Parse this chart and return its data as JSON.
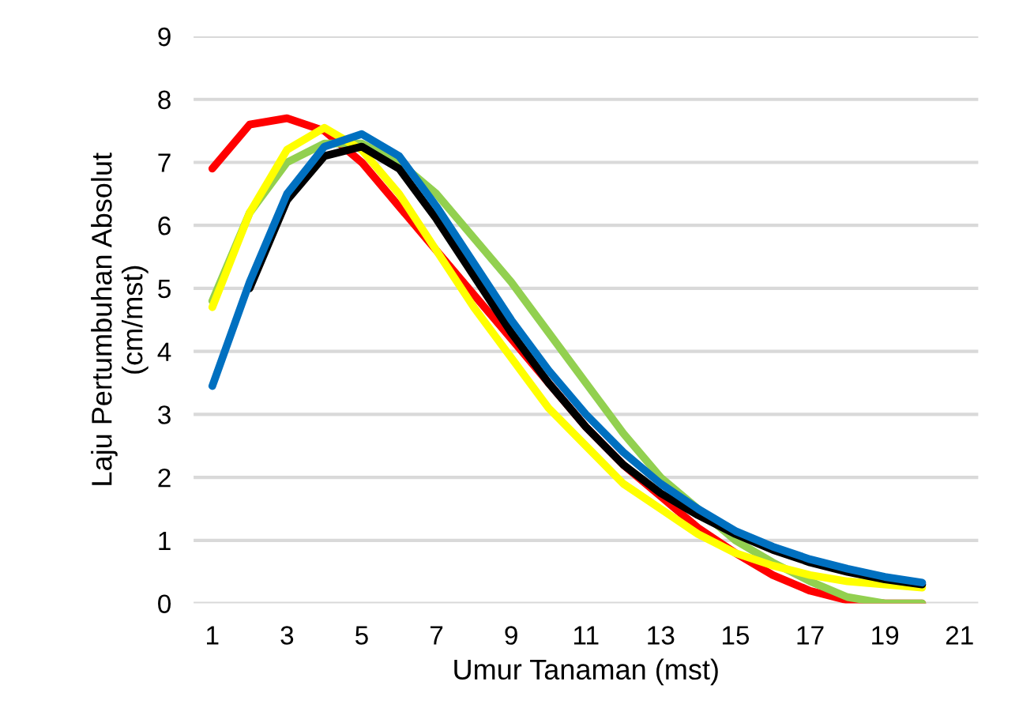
{
  "chart_data": {
    "type": "line",
    "xlabel": "Umur Tanaman (mst)",
    "ylabel": "Laju Pertumbuhan Absolut\n(cm/mst)",
    "x": [
      1,
      2,
      3,
      4,
      5,
      6,
      7,
      8,
      9,
      10,
      11,
      12,
      13,
      14,
      15,
      16,
      17,
      18,
      19,
      20
    ],
    "xlim": [
      0.5,
      21.5
    ],
    "xticks": [
      1,
      3,
      5,
      7,
      9,
      11,
      13,
      15,
      17,
      19,
      21
    ],
    "ylim": [
      0,
      9
    ],
    "yticks": [
      0,
      1,
      2,
      3,
      4,
      5,
      6,
      7,
      8,
      9
    ],
    "grid": "y",
    "marker": "none",
    "line_style": "solid",
    "series": [
      {
        "color": "#ff0000",
        "values": [
          6.9,
          7.6,
          7.7,
          7.5,
          7.0,
          6.3,
          5.6,
          4.9,
          4.2,
          3.5,
          2.8,
          2.2,
          1.7,
          1.2,
          0.8,
          0.45,
          0.2,
          0.05,
          0,
          0
        ]
      },
      {
        "color": "#92d050",
        "values": [
          4.8,
          6.2,
          7.0,
          7.3,
          7.3,
          7.0,
          6.5,
          5.8,
          5.1,
          4.3,
          3.5,
          2.7,
          2.0,
          1.5,
          1.0,
          0.65,
          0.35,
          0.1,
          0,
          0
        ]
      },
      {
        "color": "#ffff00",
        "values": [
          4.7,
          6.2,
          7.2,
          7.55,
          7.2,
          6.5,
          5.6,
          4.7,
          3.9,
          3.1,
          2.5,
          1.9,
          1.5,
          1.1,
          0.8,
          0.6,
          0.45,
          0.35,
          0.3,
          0.25
        ]
      },
      {
        "color": "#000000",
        "values": [
          null,
          5.0,
          6.4,
          7.1,
          7.25,
          6.9,
          6.1,
          5.2,
          4.3,
          3.5,
          2.8,
          2.2,
          1.75,
          1.4,
          1.1,
          0.85,
          0.65,
          0.5,
          0.38,
          0.3
        ]
      },
      {
        "color": "#0070c0",
        "values": [
          3.45,
          5.1,
          6.5,
          7.25,
          7.45,
          7.1,
          6.3,
          5.4,
          4.5,
          3.7,
          3.0,
          2.4,
          1.9,
          1.5,
          1.15,
          0.9,
          0.7,
          0.55,
          0.42,
          0.33
        ]
      }
    ]
  }
}
